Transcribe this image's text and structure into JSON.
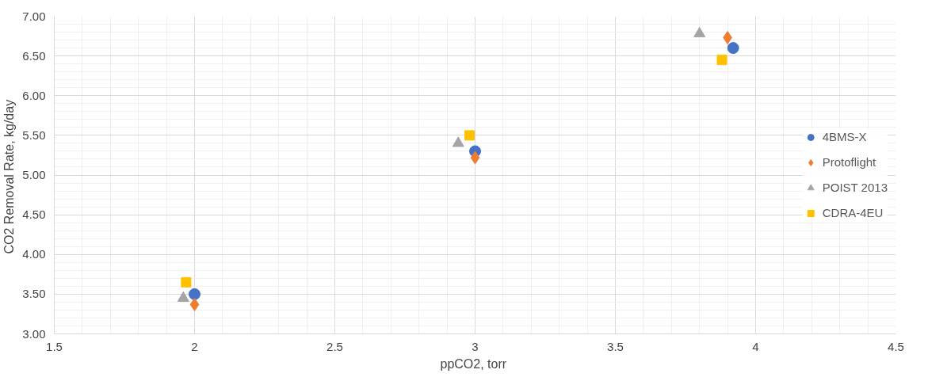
{
  "chart_data": {
    "type": "scatter",
    "xlabel": "ppCO2,  torr",
    "ylabel": "CO2 Removal Rate,  kg/day",
    "xlim": [
      1.5,
      4.5
    ],
    "xticks": [
      1.5,
      2,
      2.5,
      3,
      3.5,
      4,
      4.5
    ],
    "ylim": [
      3.0,
      7.0
    ],
    "yticks": [
      {
        "value": 3.0,
        "label": "3.00"
      },
      {
        "value": 3.5,
        "label": "3.50"
      },
      {
        "value": 4.0,
        "label": "4.00"
      },
      {
        "value": 4.5,
        "label": "4.50"
      },
      {
        "value": 5.0,
        "label": "5.00"
      },
      {
        "value": 5.5,
        "label": "5.50"
      },
      {
        "value": 6.0,
        "label": "6.00"
      },
      {
        "value": 6.5,
        "label": "6.50"
      },
      {
        "value": 7.0,
        "label": "7.00"
      }
    ],
    "grid": true,
    "legend": "right",
    "series": [
      {
        "name": "4BMS-X",
        "color": "#4472c4",
        "marker": "circle",
        "x": [
          2.0,
          3.0,
          3.92
        ],
        "values": [
          3.5,
          5.3,
          6.6
        ]
      },
      {
        "name": "Protoflight",
        "color": "#ed7d31",
        "marker": "diamond",
        "x": [
          2.0,
          3.0,
          3.9
        ],
        "values": [
          3.37,
          5.22,
          6.73
        ]
      },
      {
        "name": "POIST 2013",
        "color": "#a5a5a5",
        "marker": "triangle",
        "x": [
          1.96,
          2.94,
          3.8
        ],
        "values": [
          3.45,
          5.4,
          6.78
        ]
      },
      {
        "name": "CDRA-4EU",
        "color": "#ffc000",
        "marker": "square",
        "x": [
          1.97,
          2.98,
          3.88
        ],
        "values": [
          3.65,
          5.5,
          6.45
        ]
      }
    ]
  }
}
